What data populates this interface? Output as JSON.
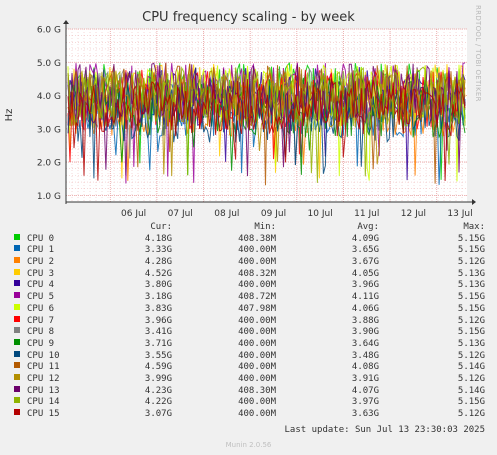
{
  "chart_data": {
    "type": "line",
    "title": "CPU frequency scaling - by week",
    "ylabel": "Hz",
    "ylim": [
      0.8,
      6.0
    ],
    "y_ticks": [
      1.0,
      2.0,
      3.0,
      4.0,
      5.0,
      6.0
    ],
    "y_tick_labels": [
      "1.0 G",
      "2.0 G",
      "3.0 G",
      "4.0 G",
      "5.0 G",
      "6.0 G"
    ],
    "x_ticks": [
      "06 Jul",
      "07 Jul",
      "08 Jul",
      "09 Jul",
      "10 Jul",
      "11 Jul",
      "12 Jul",
      "13 Jul"
    ],
    "grid": true,
    "columns": [
      "Cur:",
      "Min:",
      "Avg:",
      "Max:"
    ],
    "series": [
      {
        "name": "CPU 0",
        "color": "#00cc00",
        "cur": "4.18G",
        "min": "408.38M",
        "avg": "4.09G",
        "max": "5.15G",
        "avg_value": 4.09
      },
      {
        "name": "CPU 1",
        "color": "#0066b3",
        "cur": "3.33G",
        "min": "400.00M",
        "avg": "3.65G",
        "max": "5.15G",
        "avg_value": 3.65
      },
      {
        "name": "CPU 2",
        "color": "#ff8000",
        "cur": "4.28G",
        "min": "400.00M",
        "avg": "3.67G",
        "max": "5.12G",
        "avg_value": 3.67
      },
      {
        "name": "CPU 3",
        "color": "#ffcc00",
        "cur": "4.52G",
        "min": "408.32M",
        "avg": "4.05G",
        "max": "5.13G",
        "avg_value": 4.05
      },
      {
        "name": "CPU 4",
        "color": "#330099",
        "cur": "3.80G",
        "min": "400.00M",
        "avg": "3.96G",
        "max": "5.13G",
        "avg_value": 3.96
      },
      {
        "name": "CPU 5",
        "color": "#990099",
        "cur": "3.18G",
        "min": "408.72M",
        "avg": "4.11G",
        "max": "5.15G",
        "avg_value": 4.11
      },
      {
        "name": "CPU 6",
        "color": "#ccff00",
        "cur": "3.83G",
        "min": "407.98M",
        "avg": "4.06G",
        "max": "5.15G",
        "avg_value": 4.06
      },
      {
        "name": "CPU 7",
        "color": "#ff0000",
        "cur": "3.96G",
        "min": "400.00M",
        "avg": "3.88G",
        "max": "5.12G",
        "avg_value": 3.88
      },
      {
        "name": "CPU 8",
        "color": "#808080",
        "cur": "3.41G",
        "min": "400.00M",
        "avg": "3.90G",
        "max": "5.15G",
        "avg_value": 3.9
      },
      {
        "name": "CPU 9",
        "color": "#008f00",
        "cur": "3.71G",
        "min": "400.00M",
        "avg": "3.64G",
        "max": "5.13G",
        "avg_value": 3.64
      },
      {
        "name": "CPU 10",
        "color": "#00487d",
        "cur": "3.55G",
        "min": "400.00M",
        "avg": "3.48G",
        "max": "5.12G",
        "avg_value": 3.48
      },
      {
        "name": "CPU 11",
        "color": "#b35a00",
        "cur": "4.59G",
        "min": "400.00M",
        "avg": "4.08G",
        "max": "5.14G",
        "avg_value": 4.08
      },
      {
        "name": "CPU 12",
        "color": "#b38f00",
        "cur": "3.99G",
        "min": "400.00M",
        "avg": "3.91G",
        "max": "5.12G",
        "avg_value": 3.91
      },
      {
        "name": "CPU 13",
        "color": "#6b006b",
        "cur": "4.23G",
        "min": "408.30M",
        "avg": "4.07G",
        "max": "5.14G",
        "avg_value": 4.07
      },
      {
        "name": "CPU 14",
        "color": "#8fb300",
        "cur": "4.22G",
        "min": "400.00M",
        "avg": "3.97G",
        "max": "5.15G",
        "avg_value": 3.97
      },
      {
        "name": "CPU 15",
        "color": "#b30000",
        "cur": "3.07G",
        "min": "400.00M",
        "avg": "3.63G",
        "max": "5.12G",
        "avg_value": 3.63
      }
    ]
  },
  "side_label": "RRDTOOL / TOBI OETIKER",
  "last_update": "Last update: Sun Jul 13 23:30:03 2025",
  "footer": "Munin 2.0.56"
}
